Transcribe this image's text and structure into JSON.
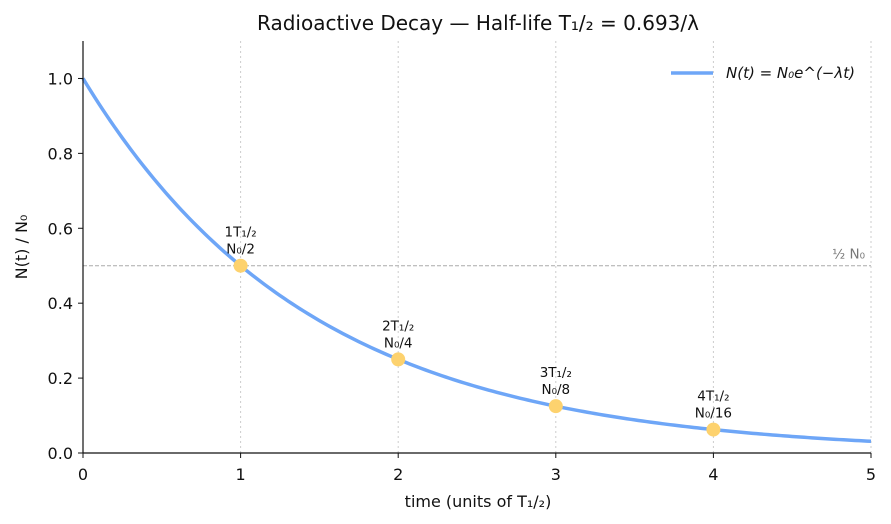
{
  "chart_data": {
    "type": "line",
    "title": "Radioactive Decay — Half-life T₁/₂ = 0.693/λ",
    "xlabel": "time (units of T₁/₂)",
    "ylabel": "N(t) / N₀",
    "xlim": [
      0,
      5
    ],
    "ylim": [
      0,
      1.1
    ],
    "x_ticks": [
      0,
      1,
      2,
      3,
      4,
      5
    ],
    "y_ticks": [
      0.0,
      0.2,
      0.4,
      0.6,
      0.8,
      1.0
    ],
    "x_tick_labels": [
      "0",
      "1",
      "2",
      "3",
      "4",
      "5"
    ],
    "y_tick_labels": [
      "0.0",
      "0.2",
      "0.4",
      "0.6",
      "0.8",
      "1.0"
    ],
    "grid": "vertical dotted at x ticks",
    "legend_position": "top-right",
    "series": [
      {
        "name": "N(t) = N₀e^(−λt)",
        "function": "0.5^x",
        "x": [
          0,
          0.5,
          1,
          1.5,
          2,
          2.5,
          3,
          3.5,
          4,
          4.5,
          5
        ],
        "y": [
          1.0,
          0.707,
          0.5,
          0.354,
          0.25,
          0.177,
          0.125,
          0.088,
          0.0625,
          0.044,
          0.031
        ],
        "color": "#6ea6f7"
      }
    ],
    "reference_line": {
      "y": 0.5,
      "label": "½ N₀",
      "color": "#aaaaaa"
    },
    "markers": [
      {
        "x": 1,
        "y": 0.5,
        "line1": "1T₁/₂",
        "line2": "N₀/2"
      },
      {
        "x": 2,
        "y": 0.25,
        "line1": "2T₁/₂",
        "line2": "N₀/4"
      },
      {
        "x": 3,
        "y": 0.125,
        "line1": "3T₁/₂",
        "line2": "N₀/8"
      },
      {
        "x": 4,
        "y": 0.0625,
        "line1": "4T₁/₂",
        "line2": "N₀/16"
      }
    ],
    "marker_color": "#fdd26e"
  }
}
